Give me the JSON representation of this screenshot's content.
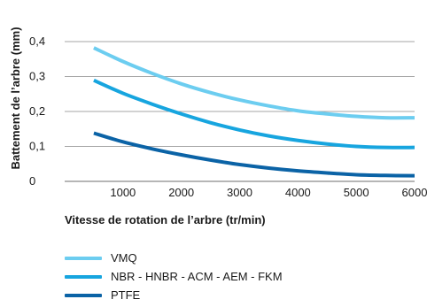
{
  "chart_data": {
    "type": "line",
    "ylabel": "Battement de l’arbre (mm)",
    "xlabel": "Vitesse de rotation de l’arbre (tr/min)",
    "x_ticks": [
      1000,
      2000,
      3000,
      4000,
      5000,
      6000
    ],
    "x_tick_labels": [
      "1000",
      "2000",
      "3000",
      "4000",
      "5000",
      "6000"
    ],
    "y_ticks": [
      0,
      0.1,
      0.2,
      0.3,
      0.4
    ],
    "y_tick_labels": [
      "0",
      "0,1",
      "0,2",
      "0,3",
      "0,4"
    ],
    "xlim": [
      0,
      6000
    ],
    "ylim": [
      0,
      0.4
    ],
    "grid": "horizontal",
    "legend_position": "bottom",
    "series": [
      {
        "name": "VMQ",
        "color": "#6ccdf0",
        "x": [
          500,
          1000,
          1500,
          2000,
          2500,
          3000,
          3500,
          4000,
          4500,
          5000,
          5500,
          6000
        ],
        "y": [
          0.382,
          0.343,
          0.309,
          0.279,
          0.254,
          0.233,
          0.216,
          0.202,
          0.193,
          0.186,
          0.182,
          0.182
        ]
      },
      {
        "name": "NBR - HNBR - ACM - AEM - FKM",
        "color": "#17a5df",
        "x": [
          500,
          1000,
          1500,
          2000,
          2500,
          3000,
          3500,
          4000,
          4500,
          5000,
          5500,
          6000
        ],
        "y": [
          0.289,
          0.252,
          0.221,
          0.193,
          0.168,
          0.147,
          0.13,
          0.117,
          0.107,
          0.1,
          0.097,
          0.097
        ]
      },
      {
        "name": "PTFE",
        "color": "#0b63a6",
        "x": [
          500,
          1000,
          1500,
          2000,
          2500,
          3000,
          3500,
          4000,
          4500,
          5000,
          5500,
          6000
        ],
        "y": [
          0.138,
          0.113,
          0.093,
          0.076,
          0.061,
          0.048,
          0.038,
          0.03,
          0.024,
          0.019,
          0.017,
          0.016
        ]
      }
    ]
  }
}
